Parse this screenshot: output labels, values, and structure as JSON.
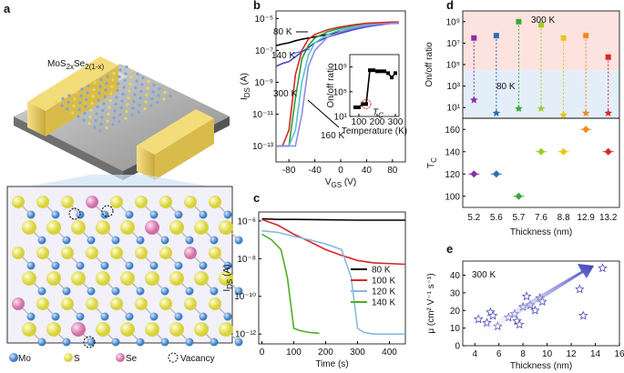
{
  "illustration": {
    "panel": "a",
    "formula": [
      "MoS",
      "2x",
      "Se",
      "2(1-x)"
    ],
    "legend": [
      "Mo",
      "S",
      "Se",
      "Vacancy"
    ]
  },
  "chart_data": [
    {
      "type": "line",
      "panel": "b",
      "yscale": "log",
      "ylabel": [
        "I",
        "DS",
        " (A)"
      ],
      "xlabel": [
        "V",
        "GS",
        " (V)"
      ],
      "x": [
        -100,
        -90,
        -80,
        -70,
        -60,
        -50,
        -40,
        -20,
        0,
        20,
        40,
        60,
        80,
        90
      ],
      "xlim": [
        -100,
        100
      ],
      "xticks": [
        -80,
        -40,
        0,
        40,
        80
      ],
      "ylim": [
        1e-14,
        3e-05
      ],
      "yticks": [
        {
          "value": 1e-05,
          "label": "10⁻⁵"
        },
        {
          "value": 1e-07,
          "label": "10⁻⁷"
        },
        {
          "value": 1e-09,
          "label": "10⁻⁹"
        },
        {
          "value": 1e-11,
          "label": "10⁻¹¹"
        },
        {
          "value": 1e-13,
          "label": "10⁻¹³"
        }
      ],
      "series": [
        {
          "name": "80 K",
          "color": "#000000",
          "values": [
            2e-07,
            2.5e-07,
            3e-07,
            4e-07,
            5e-07,
            6e-07,
            7e-07,
            1e-06,
            1.5e-06,
            2.5e-06,
            3.5e-06,
            4.5e-06,
            5e-06,
            5.5e-06
          ]
        },
        {
          "name": "140 K",
          "color": "#3b4cc0",
          "values": [
            1e-08,
            1.5e-08,
            2e-08,
            4e-08,
            8e-08,
            1.5e-07,
            3e-07,
            7e-07,
            1.2e-06,
            2e-06,
            3e-06,
            4e-06,
            5e-06,
            5e-06
          ]
        },
        {
          "color": "#2ca02c",
          "values": [
            1e-13,
            1e-13,
            1e-13,
            1e-10,
            3e-08,
            2e-07,
            6e-07,
            1.5e-06,
            2.5e-06,
            3.5e-06,
            4.5e-06,
            5e-06,
            5.5e-06,
            6e-06
          ]
        },
        {
          "color": "#5bc0de",
          "values": [
            1e-13,
            1e-13,
            1e-13,
            1e-12,
            1e-09,
            5e-08,
            3e-07,
            1e-06,
            2e-06,
            3e-06,
            4e-06,
            5e-06,
            5.5e-06,
            6e-06
          ]
        },
        {
          "name": "300 K",
          "color": "#d62728",
          "values": [
            1e-13,
            1e-13,
            1e-12,
            3e-09,
            1e-07,
            5e-07,
            1e-06,
            2e-06,
            3e-06,
            4e-06,
            5e-06,
            5.5e-06,
            6e-06,
            6e-06
          ]
        },
        {
          "name": "160 K",
          "color": "#8c8ce0",
          "values": [
            1e-13,
            1e-13,
            1e-13,
            1e-13,
            1e-11,
            1e-08,
            1e-07,
            7e-07,
            1.5e-06,
            2.5e-06,
            3.5e-06,
            4.5e-06,
            5e-06,
            5.5e-06
          ]
        }
      ]
    },
    {
      "type": "line",
      "yscale": "log",
      "markers": true,
      "ylabel": "On/off ratio",
      "xlabel": "Temperature (K)",
      "annotation": [
        "T",
        "C"
      ],
      "x": [
        80,
        100,
        120,
        140,
        160,
        180,
        200,
        220,
        240,
        260,
        280,
        300
      ],
      "xlim": [
        50,
        320
      ],
      "xticks": [
        100,
        200,
        300
      ],
      "ylim": [
        10,
        100000000000.0
      ],
      "yticks": [
        {
          "value": 10,
          "label": "10¹"
        },
        {
          "value": 100000,
          "label": "10⁵"
        },
        {
          "value": 1000000000,
          "label": "10⁹"
        }
      ],
      "series": [
        {
          "color": "#000000",
          "values": [
            300,
            300,
            1000,
            1000,
            300000000,
            300000000,
            200000000,
            200000000,
            200000000,
            100000000,
            20000000,
            100000000
          ]
        }
      ]
    },
    {
      "type": "line",
      "panel": "c",
      "yscale": "log",
      "ylabel": [
        "I",
        "DS",
        " (A)"
      ],
      "xlabel": "Time (s)",
      "xlim": [
        -10,
        450
      ],
      "xticks": [
        0,
        100,
        200,
        300,
        400
      ],
      "ylim": [
        3e-13,
        3e-06
      ],
      "yticks": [
        {
          "value": 1e-06,
          "label": "10⁻⁶"
        },
        {
          "value": 1e-08,
          "label": "10⁻⁸"
        },
        {
          "value": 1e-10,
          "label": "10⁻¹⁰"
        },
        {
          "value": 1e-12,
          "label": "10⁻¹²"
        }
      ],
      "series": [
        {
          "name": "80 K",
          "color": "#000000",
          "x": [
            0,
            50,
            100,
            200,
            300,
            450
          ],
          "values": [
            1.3e-06,
            1.2e-06,
            1.2e-06,
            1.15e-06,
            1.1e-06,
            1.1e-06
          ]
        },
        {
          "name": "100 K",
          "color": "#d62728",
          "x": [
            0,
            50,
            100,
            150,
            200,
            250,
            300,
            350,
            450
          ],
          "values": [
            1.2e-06,
            6e-07,
            2e-07,
            8e-08,
            3e-08,
            1.5e-08,
            8e-09,
            6e-09,
            5e-09
          ]
        },
        {
          "name": "120 K",
          "color": "#8ab8e0",
          "x": [
            0,
            50,
            100,
            150,
            200,
            250,
            280,
            300,
            320,
            350,
            450
          ],
          "values": [
            3e-07,
            2.5e-07,
            1.5e-07,
            1e-07,
            6e-08,
            3e-08,
            1e-09,
            2e-12,
            1.2e-12,
            1e-12,
            1e-12
          ]
        },
        {
          "name": "140 K",
          "color": "#4caf22",
          "x": [
            0,
            30,
            60,
            80,
            100,
            120,
            150,
            180
          ],
          "values": [
            2e-07,
            1e-07,
            3e-08,
            1e-09,
            2e-12,
            1.5e-12,
            1.2e-12,
            1.1e-12
          ]
        }
      ]
    },
    {
      "type": "category-scatter",
      "panel": "d",
      "yscale": "log",
      "ylabel": "On/off ratio",
      "colors": [
        "#8e2ca8",
        "#2a6db5",
        "#3aa83a",
        "#9ccc2a",
        "#e6c619",
        "#f08a1c",
        "#d62728"
      ],
      "ylim": [
        1,
        10000000000
      ],
      "yticks": [
        {
          "value": 10,
          "label": "10¹"
        },
        {
          "value": 1000,
          "label": "10³"
        },
        {
          "value": 100000,
          "label": "10⁵"
        },
        {
          "value": 10000000,
          "label": "10⁷"
        },
        {
          "value": 1000000000,
          "label": "10⁹"
        }
      ],
      "series": [
        {
          "name": "300 K",
          "marker": "square",
          "values": [
            30000000,
            50000000,
            1000000000,
            500000000,
            30000000,
            50000000,
            500000
          ]
        },
        {
          "name": "80 K",
          "marker": "star",
          "values": [
            50,
            3,
            8,
            8,
            2,
            3,
            3
          ]
        }
      ]
    },
    {
      "type": "category-scatter",
      "ylabel": [
        "T",
        "C"
      ],
      "xlabel": "Thickness (nm)",
      "categories": [
        "5.2",
        "5.6",
        "5.7",
        "7.6",
        "8.8",
        "12.9",
        "13.2"
      ],
      "colors": [
        "#8e2ca8",
        "#2a6db5",
        "#3aa83a",
        "#9ccc2a",
        "#e6c619",
        "#f08a1c",
        "#d62728"
      ],
      "ylim": [
        90,
        170
      ],
      "yticks": [
        100,
        120,
        140,
        160
      ],
      "series": [
        {
          "marker": "diamond",
          "values": [
            120,
            120,
            100,
            140,
            140,
            160,
            140
          ]
        }
      ]
    },
    {
      "type": "scatter",
      "panel": "e",
      "ylabel": "μ (cm² V⁻¹ s⁻¹)",
      "xlabel": "Thickness (nm)",
      "annotation": "300 K",
      "xlim": [
        3,
        16
      ],
      "xticks": [
        4,
        6,
        8,
        10,
        12,
        14,
        16
      ],
      "ylim": [
        0,
        48
      ],
      "yticks": [
        0,
        10,
        20,
        30,
        40
      ],
      "series": [
        {
          "color": "#4a4ab8",
          "marker": "star",
          "x": [
            4.3,
            5.0,
            5.3,
            5.5,
            5.9,
            6.8,
            7.3,
            7.5,
            7.7,
            8.0,
            8.3,
            8.6,
            9.0,
            9.4,
            9.6,
            12.7,
            13.0,
            14.6
          ],
          "values": [
            15,
            13,
            19,
            17,
            11,
            16,
            18,
            14,
            12,
            22,
            28,
            23,
            20,
            27,
            25,
            32,
            17,
            44
          ]
        }
      ]
    }
  ]
}
